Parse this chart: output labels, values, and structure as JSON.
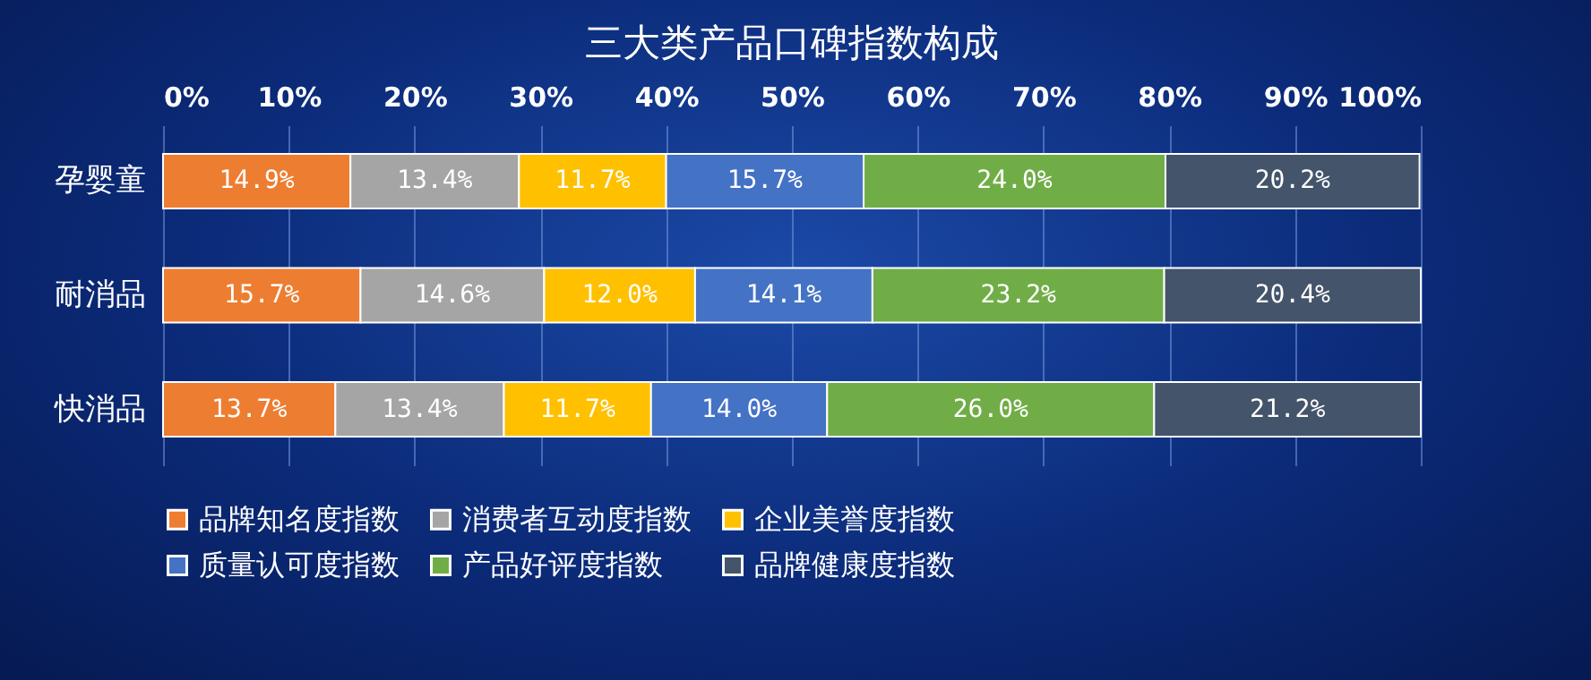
{
  "chart_data": {
    "type": "bar",
    "orientation": "horizontal",
    "stacked": true,
    "title": "三大类产品口碑指数构成",
    "categories": [
      "孕婴童",
      "耐消品",
      "快消品"
    ],
    "series": [
      {
        "name": "品牌知名度指数",
        "color": "#ed7d31",
        "values": [
          14.9,
          15.7,
          13.7
        ],
        "value_labels": [
          "14.9%",
          "15.7%",
          "13.7%"
        ]
      },
      {
        "name": "消费者互动度指数",
        "color": "#a5a5a5",
        "values": [
          13.4,
          14.6,
          13.4
        ],
        "value_labels": [
          "13.4%",
          "14.6%",
          "13.4%"
        ]
      },
      {
        "name": "企业美誉度指数",
        "color": "#ffc000",
        "values": [
          11.7,
          12.0,
          11.7
        ],
        "value_labels": [
          "11.7%",
          "12.0%",
          "11.7%"
        ]
      },
      {
        "name": "质量认可度指数",
        "color": "#4472c4",
        "values": [
          15.7,
          14.1,
          14.0
        ],
        "value_labels": [
          "15.7%",
          "14.1%",
          "14.0%"
        ]
      },
      {
        "name": "产品好评度指数",
        "color": "#70ad47",
        "values": [
          24.0,
          23.2,
          26.0
        ],
        "value_labels": [
          "24.0%",
          "23.2%",
          "26.0%"
        ]
      },
      {
        "name": "品牌健康度指数",
        "color": "#44546a",
        "values": [
          20.2,
          20.4,
          21.2
        ],
        "value_labels": [
          "20.2%",
          "20.4%",
          "21.2%"
        ]
      }
    ],
    "xlim": [
      0,
      100
    ],
    "xticks": [
      {
        "value": 0,
        "label": "0%"
      },
      {
        "value": 10,
        "label": "10%"
      },
      {
        "value": 20,
        "label": "20%"
      },
      {
        "value": 30,
        "label": "30%"
      },
      {
        "value": 40,
        "label": "40%"
      },
      {
        "value": 50,
        "label": "50%"
      },
      {
        "value": 60,
        "label": "60%"
      },
      {
        "value": 70,
        "label": "70%"
      },
      {
        "value": 80,
        "label": "80%"
      },
      {
        "value": 90,
        "label": "90%"
      },
      {
        "value": 100,
        "label": "100%"
      }
    ],
    "grid": "x",
    "legend": "bottom"
  }
}
